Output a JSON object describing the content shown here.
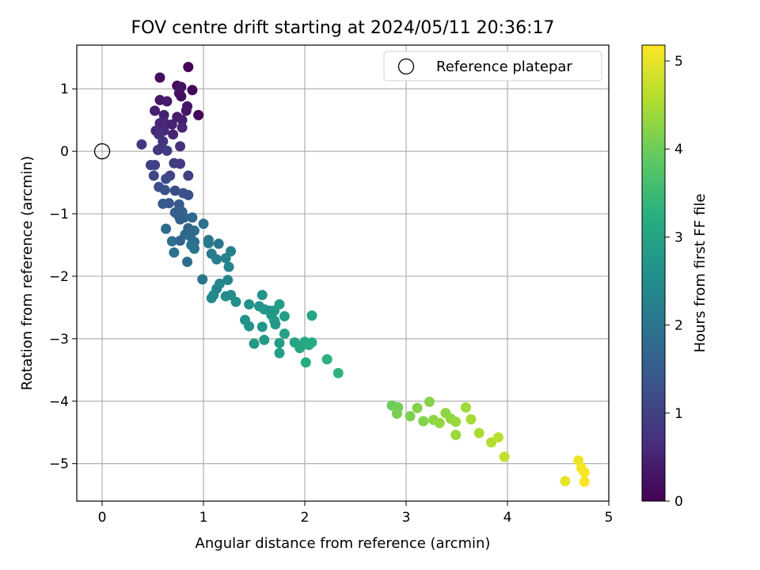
{
  "chart_data": {
    "type": "scatter",
    "title": "FOV centre drift starting at 2024/05/11 20:36:17",
    "xlabel": "Angular distance from reference (arcmin)",
    "ylabel": "Rotation from reference (arcmin)",
    "xlim": [
      -0.25,
      5.0
    ],
    "ylim": [
      -5.6,
      1.7
    ],
    "xticks": [
      0,
      1,
      2,
      3,
      4,
      5
    ],
    "yticks": [
      -5,
      -4,
      -3,
      -2,
      -1,
      0,
      1
    ],
    "xtick_labels": [
      "0",
      "1",
      "2",
      "3",
      "4",
      "5"
    ],
    "ytick_labels": [
      "−5",
      "−4",
      "−3",
      "−2",
      "−1",
      "0",
      "1"
    ],
    "grid": true,
    "legend": {
      "position": "top-right",
      "label": "Reference platepar"
    },
    "reference_point": {
      "x": 0,
      "y": 0
    },
    "colorbar": {
      "label": "Hours from first FF file",
      "range": [
        0,
        5.18
      ],
      "ticks": [
        0,
        1,
        2,
        3,
        4,
        5
      ],
      "tick_labels": [
        "0",
        "1",
        "2",
        "3",
        "4",
        "5"
      ],
      "colormap": "viridis"
    },
    "series": [
      {
        "points": [
          [
            0.85,
            1.35,
            0.05
          ],
          [
            0.57,
            1.18,
            0.2
          ],
          [
            0.74,
            1.05,
            0.15
          ],
          [
            0.78,
            1.03,
            0.25
          ],
          [
            0.89,
            0.98,
            0.1
          ],
          [
            0.76,
            0.93,
            0.3
          ],
          [
            0.78,
            0.88,
            0.2
          ],
          [
            0.57,
            0.82,
            0.35
          ],
          [
            0.64,
            0.8,
            0.4
          ],
          [
            0.84,
            0.72,
            0.3
          ],
          [
            0.52,
            0.65,
            0.45
          ],
          [
            0.83,
            0.65,
            0.35
          ],
          [
            0.95,
            0.58,
            0.05
          ],
          [
            0.61,
            0.58,
            0.5
          ],
          [
            0.74,
            0.55,
            0.4
          ],
          [
            0.79,
            0.5,
            0.45
          ],
          [
            0.57,
            0.45,
            0.55
          ],
          [
            0.62,
            0.45,
            0.6
          ],
          [
            0.69,
            0.43,
            0.5
          ],
          [
            0.53,
            0.33,
            0.6
          ],
          [
            0.61,
            0.33,
            0.65
          ],
          [
            0.79,
            0.38,
            0.55
          ],
          [
            0.56,
            0.27,
            0.7
          ],
          [
            0.7,
            0.27,
            0.55
          ],
          [
            0.6,
            0.16,
            0.75
          ],
          [
            0.39,
            0.11,
            0.9
          ],
          [
            0.77,
            0.08,
            0.7
          ],
          [
            0.55,
            0.02,
            0.9
          ],
          [
            0.58,
            0.05,
            0.85
          ],
          [
            0.64,
            0.01,
            0.95
          ],
          [
            0.48,
            -0.22,
            1.0
          ],
          [
            0.52,
            -0.22,
            1.05
          ],
          [
            0.71,
            -0.19,
            0.95
          ],
          [
            0.77,
            -0.2,
            0.9
          ],
          [
            0.51,
            -0.39,
            1.1
          ],
          [
            0.67,
            -0.39,
            1.05
          ],
          [
            0.85,
            -0.39,
            1.0
          ],
          [
            0.63,
            -0.44,
            1.2
          ],
          [
            0.56,
            -0.57,
            1.25
          ],
          [
            0.62,
            -0.62,
            1.3
          ],
          [
            0.72,
            -0.63,
            1.25
          ],
          [
            0.8,
            -0.67,
            1.35
          ],
          [
            0.85,
            -0.7,
            1.3
          ],
          [
            0.6,
            -0.84,
            1.5
          ],
          [
            0.66,
            -0.83,
            1.45
          ],
          [
            0.76,
            -0.85,
            1.5
          ],
          [
            0.72,
            -0.98,
            1.6
          ],
          [
            0.79,
            -0.97,
            1.65
          ],
          [
            0.75,
            -1.02,
            1.55
          ],
          [
            0.81,
            -1.06,
            1.7
          ],
          [
            0.77,
            -1.09,
            1.6
          ],
          [
            0.89,
            -1.06,
            1.75
          ],
          [
            0.63,
            -1.24,
            1.8
          ],
          [
            0.85,
            -1.23,
            1.65
          ],
          [
            0.91,
            -1.27,
            1.85
          ],
          [
            0.87,
            -1.36,
            1.8
          ],
          [
            0.82,
            -1.33,
            1.75
          ],
          [
            0.77,
            -1.43,
            1.7
          ],
          [
            0.69,
            -1.44,
            1.9
          ],
          [
            0.91,
            -1.45,
            1.85
          ],
          [
            0.88,
            -1.5,
            1.95
          ],
          [
            0.91,
            -1.56,
            2.0
          ],
          [
            1.0,
            -1.16,
            1.95
          ],
          [
            1.05,
            -1.42,
            2.05
          ],
          [
            1.05,
            -1.47,
            2.1
          ],
          [
            1.15,
            -1.48,
            2.05
          ],
          [
            1.08,
            -1.64,
            2.1
          ],
          [
            0.71,
            -1.62,
            1.9
          ],
          [
            0.84,
            -1.77,
            1.85
          ],
          [
            1.13,
            -1.73,
            2.2
          ],
          [
            1.22,
            -1.71,
            2.3
          ],
          [
            1.27,
            -1.6,
            2.25
          ],
          [
            1.25,
            -1.85,
            2.3
          ],
          [
            0.99,
            -2.05,
            2.0
          ],
          [
            1.24,
            -2.06,
            2.35
          ],
          [
            1.16,
            -2.12,
            2.4
          ],
          [
            1.13,
            -2.2,
            2.35
          ],
          [
            1.1,
            -2.3,
            2.4
          ],
          [
            1.08,
            -2.35,
            2.45
          ],
          [
            1.22,
            -2.32,
            2.5
          ],
          [
            1.27,
            -2.3,
            2.45
          ],
          [
            1.32,
            -2.41,
            2.55
          ],
          [
            1.58,
            -2.3,
            2.7
          ],
          [
            1.45,
            -2.45,
            2.6
          ],
          [
            1.55,
            -2.48,
            2.65
          ],
          [
            1.6,
            -2.53,
            2.75
          ],
          [
            1.65,
            -2.55,
            2.7
          ],
          [
            1.7,
            -2.55,
            2.8
          ],
          [
            1.67,
            -2.62,
            2.75
          ],
          [
            1.75,
            -2.45,
            2.85
          ],
          [
            1.8,
            -2.64,
            2.9
          ],
          [
            1.7,
            -2.71,
            2.85
          ],
          [
            1.71,
            -2.77,
            2.8
          ],
          [
            1.41,
            -2.7,
            2.6
          ],
          [
            1.45,
            -2.8,
            2.65
          ],
          [
            1.58,
            -2.81,
            2.7
          ],
          [
            1.8,
            -2.92,
            2.95
          ],
          [
            1.5,
            -3.08,
            2.75
          ],
          [
            1.6,
            -3.02,
            2.8
          ],
          [
            1.75,
            -3.07,
            2.85
          ],
          [
            1.75,
            -3.23,
            2.9
          ],
          [
            1.9,
            -3.06,
            3.0
          ],
          [
            1.95,
            -3.15,
            3.05
          ],
          [
            2.0,
            -3.05,
            3.1
          ],
          [
            2.04,
            -3.1,
            3.15
          ],
          [
            2.07,
            -3.06,
            3.2
          ],
          [
            2.01,
            -3.38,
            3.2
          ],
          [
            2.07,
            -2.63,
            3.1
          ],
          [
            2.22,
            -3.33,
            3.3
          ],
          [
            2.33,
            -3.55,
            3.35
          ],
          [
            2.86,
            -4.07,
            4.0
          ],
          [
            2.92,
            -4.1,
            4.05
          ],
          [
            2.91,
            -4.2,
            4.1
          ],
          [
            3.04,
            -4.24,
            4.15
          ],
          [
            3.11,
            -4.11,
            4.2
          ],
          [
            3.17,
            -4.32,
            4.2
          ],
          [
            3.23,
            -4.01,
            4.25
          ],
          [
            3.27,
            -4.3,
            4.3
          ],
          [
            3.33,
            -4.35,
            4.35
          ],
          [
            3.39,
            -4.19,
            4.3
          ],
          [
            3.44,
            -4.28,
            4.35
          ],
          [
            3.49,
            -4.33,
            4.4
          ],
          [
            3.49,
            -4.54,
            4.4
          ],
          [
            3.59,
            -4.1,
            4.45
          ],
          [
            3.64,
            -4.29,
            4.5
          ],
          [
            3.72,
            -4.51,
            4.55
          ],
          [
            3.84,
            -4.66,
            4.6
          ],
          [
            3.91,
            -4.58,
            4.65
          ],
          [
            3.97,
            -4.89,
            4.7
          ],
          [
            4.57,
            -5.28,
            5.0
          ],
          [
            4.7,
            -4.95,
            5.05
          ],
          [
            4.73,
            -5.07,
            5.1
          ],
          [
            4.76,
            -5.14,
            5.15
          ],
          [
            4.76,
            -5.29,
            5.15
          ]
        ]
      }
    ]
  }
}
